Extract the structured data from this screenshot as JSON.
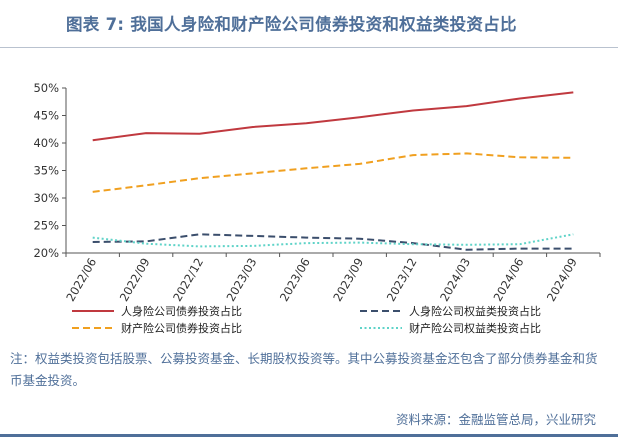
{
  "figure": {
    "title": "图表 7:  我国人身险和财产险公司债券投资和权益类投资占比",
    "note": "注：权益类投资包括股票、公募投资基金、长期股权投资等。其中公募投资基金还包含了部分债券基金和货币基金投资。",
    "source": "资料来源：金融监管总局，兴业研究"
  },
  "chart_data": {
    "type": "line",
    "title": "",
    "xlabel": "",
    "ylabel": "",
    "ylim": [
      0.2,
      0.5
    ],
    "y_ticks": [
      "20%",
      "25%",
      "30%",
      "35%",
      "40%",
      "45%",
      "50%"
    ],
    "x": [
      "2022/06",
      "2022/09",
      "2022/12",
      "2023/03",
      "2023/06",
      "2023/09",
      "2023/12",
      "2024/03",
      "2024/06",
      "2024/09"
    ],
    "grid": false,
    "legend_position": "bottom",
    "series": [
      {
        "name": "人身险公司债券投资占比",
        "style": "solid",
        "color": "#c0393f",
        "values": [
          0.405,
          0.418,
          0.417,
          0.429,
          0.436,
          0.447,
          0.459,
          0.467,
          0.481,
          0.492
        ]
      },
      {
        "name": "人身险公司权益类投资占比",
        "style": "dash",
        "color": "#3b4e6c",
        "values": [
          0.22,
          0.221,
          0.234,
          0.231,
          0.228,
          0.226,
          0.218,
          0.206,
          0.208,
          0.208
        ]
      },
      {
        "name": "财产险公司债券投资占比",
        "style": "dash",
        "color": "#f0a020",
        "values": [
          0.311,
          0.323,
          0.336,
          0.345,
          0.354,
          0.362,
          0.378,
          0.381,
          0.374,
          0.373
        ]
      },
      {
        "name": "财产险公司权益类投资占比",
        "style": "dot",
        "color": "#5fd3c8",
        "values": [
          0.228,
          0.217,
          0.212,
          0.213,
          0.218,
          0.219,
          0.216,
          0.215,
          0.216,
          0.234
        ]
      }
    ]
  }
}
